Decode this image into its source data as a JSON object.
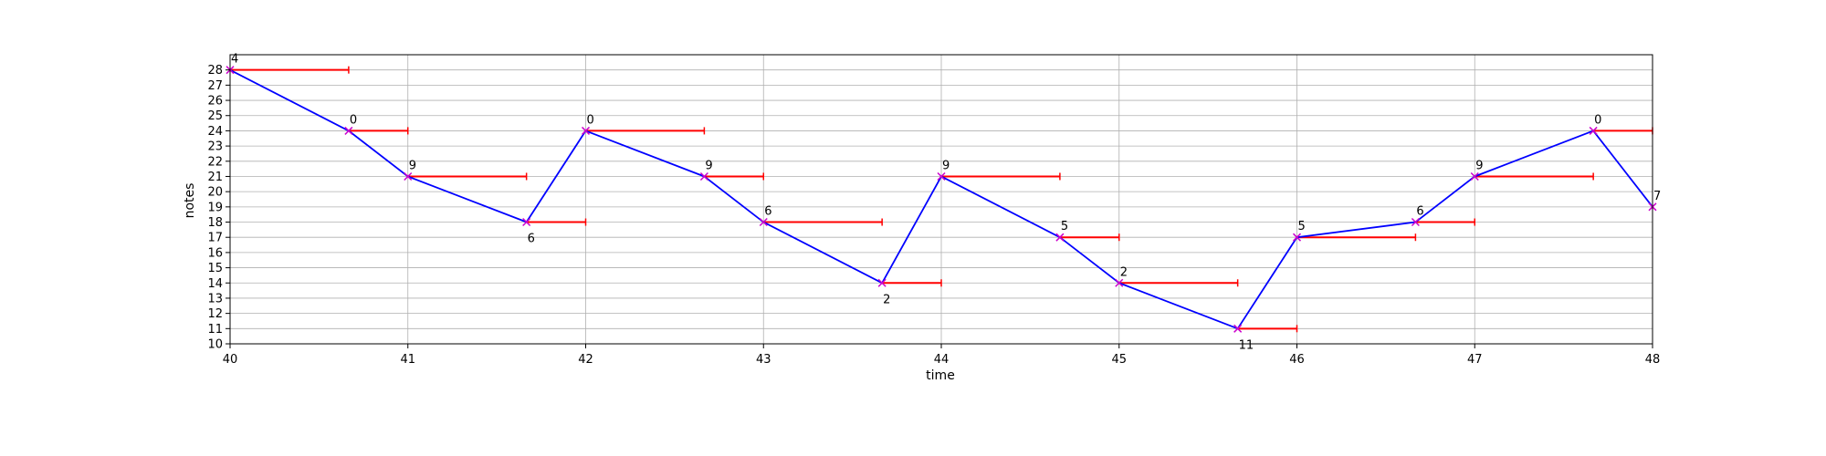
{
  "chart_data": {
    "type": "line",
    "xlabel": "time",
    "ylabel": "notes",
    "xlim": [
      40,
      48
    ],
    "ylim": [
      10,
      29
    ],
    "x_ticks": [
      "40",
      "41",
      "42",
      "43",
      "44",
      "45",
      "46",
      "47",
      "48"
    ],
    "y_ticks": [
      "10",
      "11",
      "12",
      "13",
      "14",
      "15",
      "16",
      "17",
      "18",
      "19",
      "20",
      "21",
      "22",
      "23",
      "24",
      "25",
      "26",
      "27",
      "28"
    ],
    "grid": true,
    "line_color": "#0000ff",
    "marker_color": "#cc00cc",
    "segment_color": "#ff0000",
    "points": [
      {
        "x": 40.0,
        "y": 28,
        "label": "4",
        "label_pos": "above",
        "duration": 0.667
      },
      {
        "x": 40.667,
        "y": 24,
        "label": "0",
        "label_pos": "above",
        "duration": 0.333
      },
      {
        "x": 41.0,
        "y": 21,
        "label": "9",
        "label_pos": "above",
        "duration": 0.667
      },
      {
        "x": 41.667,
        "y": 18,
        "label": "6",
        "label_pos": "below",
        "duration": 0.333
      },
      {
        "x": 42.0,
        "y": 24,
        "label": "0",
        "label_pos": "above",
        "duration": 0.667
      },
      {
        "x": 42.667,
        "y": 21,
        "label": "9",
        "label_pos": "above",
        "duration": 0.333
      },
      {
        "x": 43.0,
        "y": 18,
        "label": "6",
        "label_pos": "above",
        "duration": 0.667
      },
      {
        "x": 43.667,
        "y": 14,
        "label": "2",
        "label_pos": "below",
        "duration": 0.333
      },
      {
        "x": 44.0,
        "y": 21,
        "label": "9",
        "label_pos": "above",
        "duration": 0.667
      },
      {
        "x": 44.667,
        "y": 17,
        "label": "5",
        "label_pos": "above",
        "duration": 0.333
      },
      {
        "x": 45.0,
        "y": 14,
        "label": "2",
        "label_pos": "above",
        "duration": 0.667
      },
      {
        "x": 45.667,
        "y": 11,
        "label": "11",
        "label_pos": "below",
        "duration": 0.333
      },
      {
        "x": 46.0,
        "y": 17,
        "label": "5",
        "label_pos": "above",
        "duration": 0.667
      },
      {
        "x": 46.667,
        "y": 18,
        "label": "6",
        "label_pos": "above",
        "duration": 0.333
      },
      {
        "x": 47.0,
        "y": 21,
        "label": "9",
        "label_pos": "above",
        "duration": 0.667
      },
      {
        "x": 47.667,
        "y": 24,
        "label": "0",
        "label_pos": "above",
        "duration": 0.333
      },
      {
        "x": 48.0,
        "y": 19,
        "label": "7",
        "label_pos": "above",
        "duration": 0.0
      }
    ]
  }
}
